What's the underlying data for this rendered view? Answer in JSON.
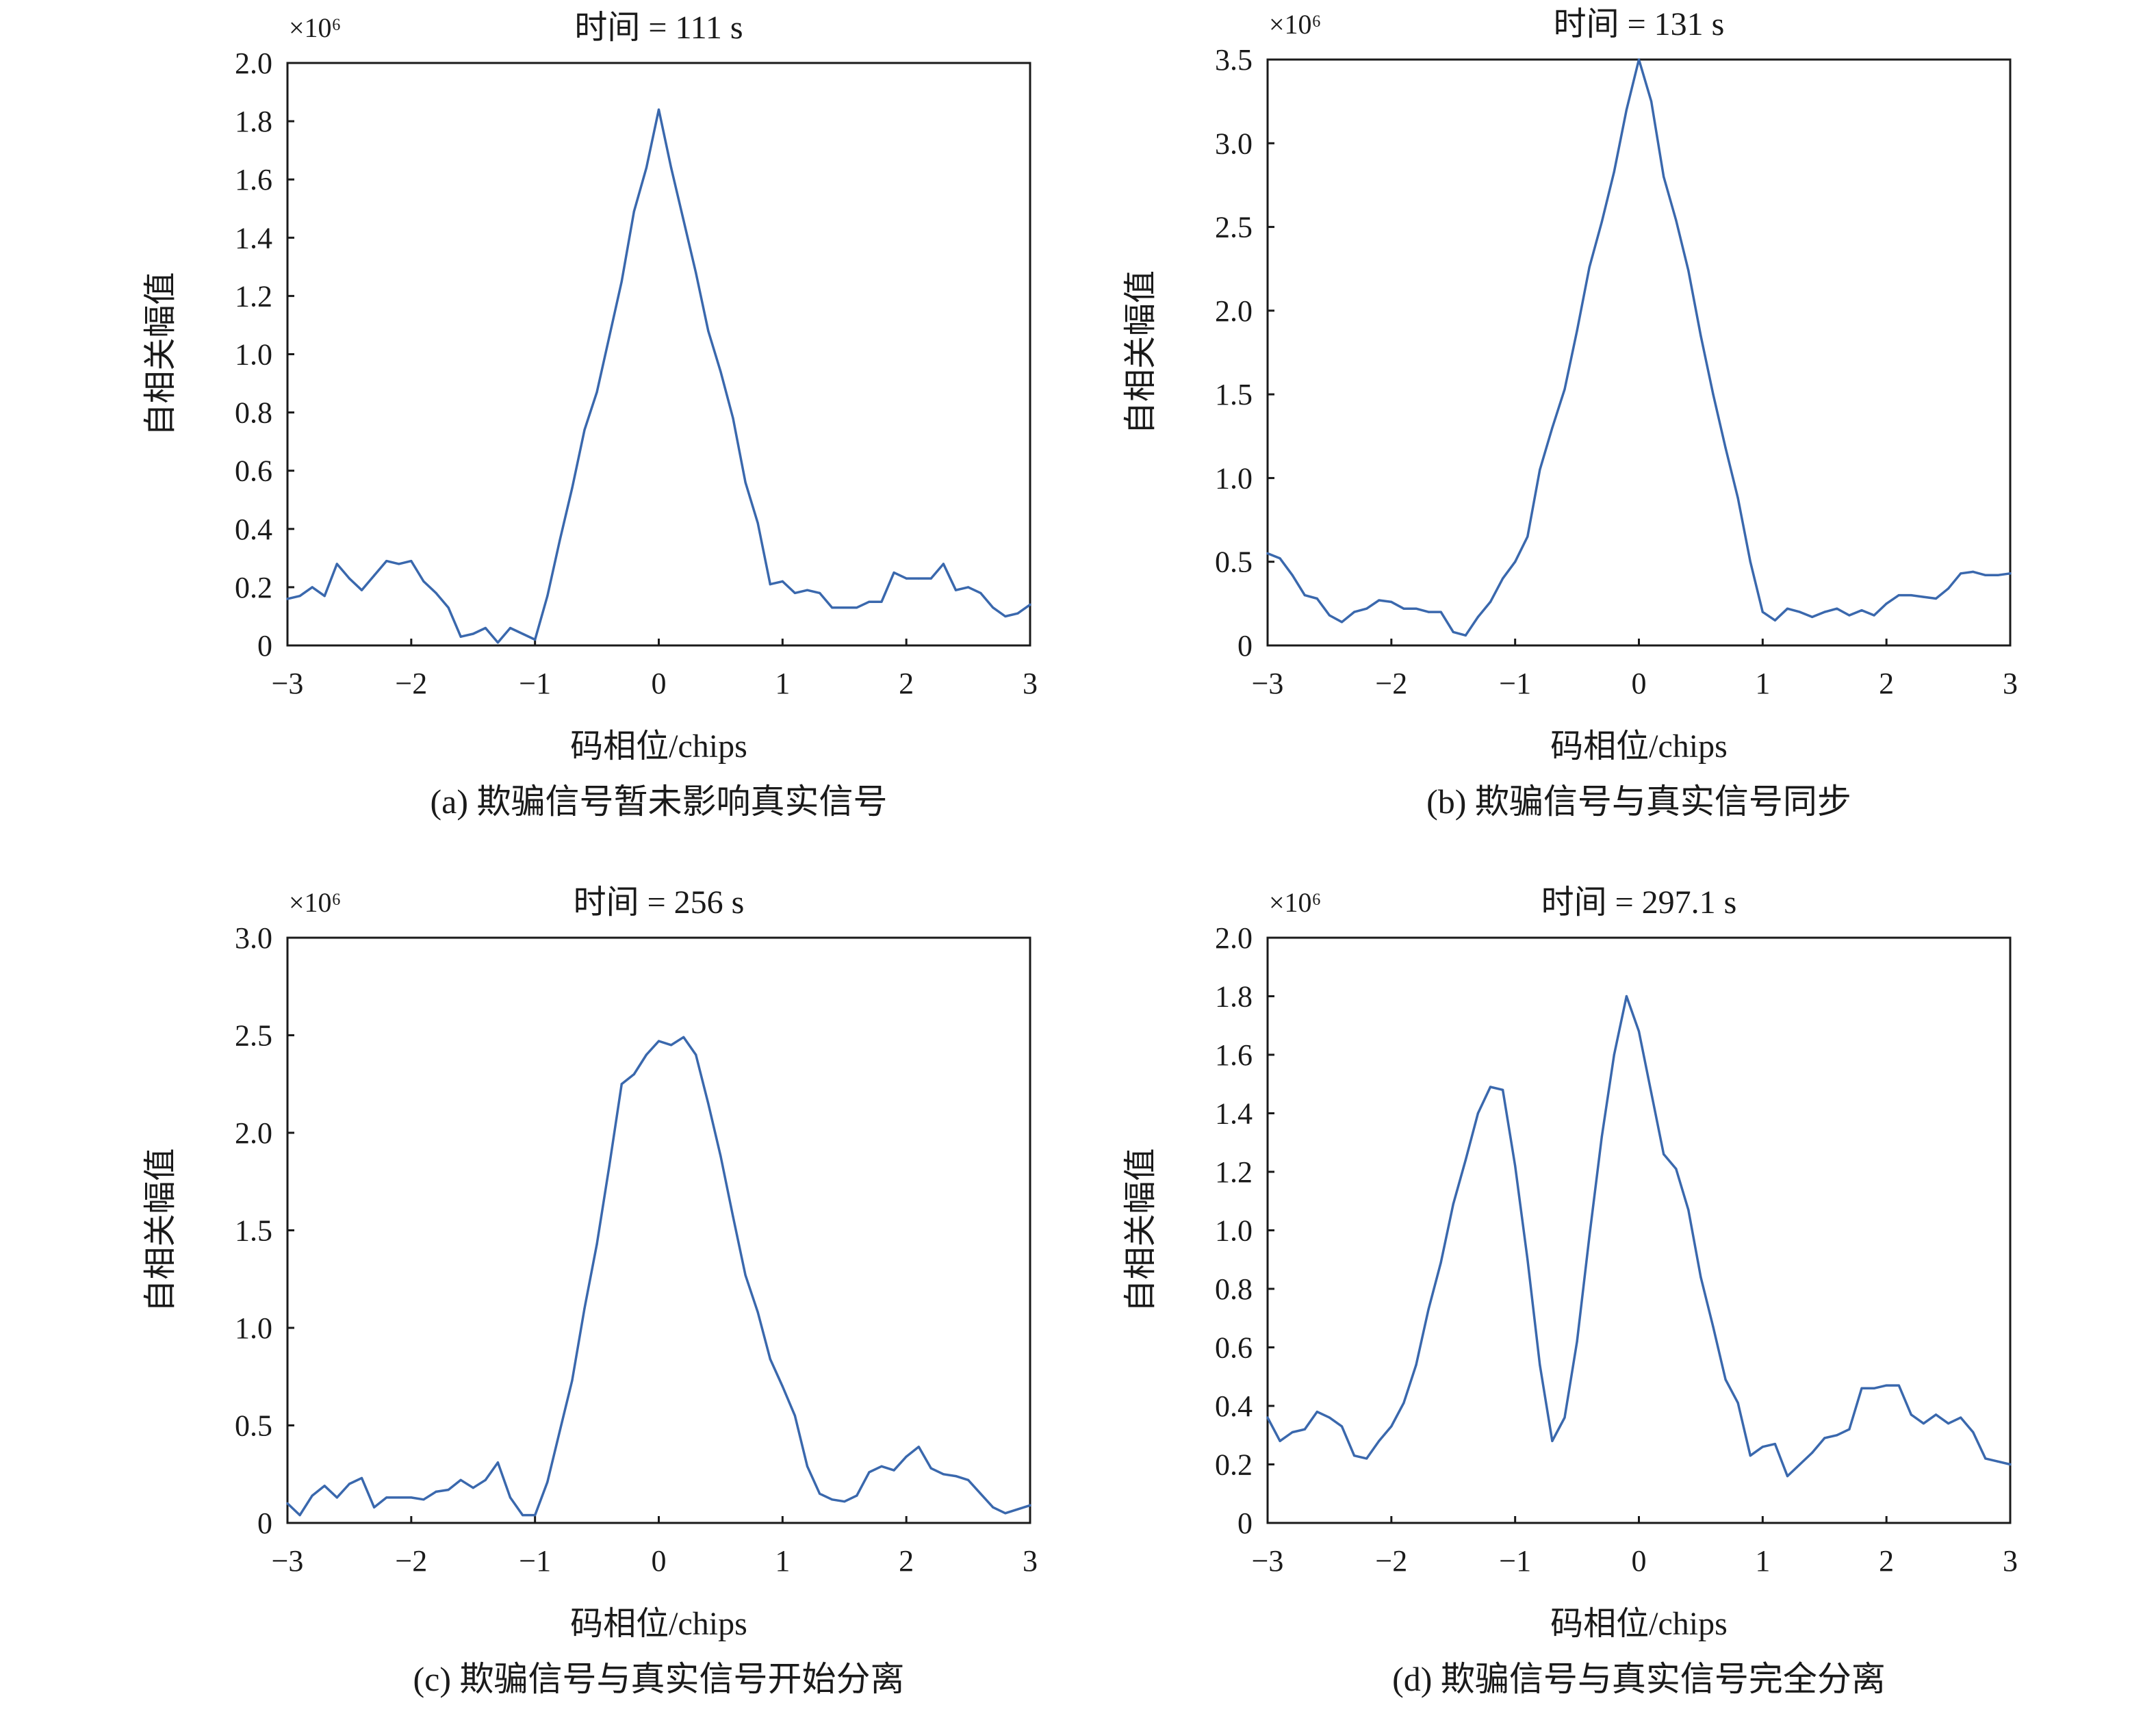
{
  "figure": {
    "title": "",
    "line_color": "#3a68ad",
    "axis_color": "#1a1a1a"
  },
  "chart_data": [
    {
      "type": "line",
      "title": "时间 = 111 s",
      "caption": "(a) 欺骗信号暂未影响真实信号",
      "xlabel": "码相位/chips",
      "ylabel": "自相关幅值",
      "y_scale_label": "×10⁶",
      "xlim": [
        -3,
        3
      ],
      "ylim": [
        0,
        2.0
      ],
      "xticks": [
        -3,
        -2,
        -1,
        0,
        1,
        2,
        3
      ],
      "xtick_labels": [
        "−3",
        "−2",
        "−1",
        "0",
        "1",
        "2",
        "3"
      ],
      "yticks": [
        0,
        0.2,
        0.4,
        0.6,
        0.8,
        1.0,
        1.2,
        1.4,
        1.6,
        1.8,
        2.0
      ],
      "ytick_labels": [
        "0",
        "0.2",
        "0.4",
        "0.6",
        "0.8",
        "1.0",
        "1.2",
        "1.4",
        "1.6",
        "1.8",
        "2.0"
      ],
      "grid": false,
      "series": [
        {
          "x": [
            -3.0,
            -2.9,
            -2.8,
            -2.7,
            -2.6,
            -2.5,
            -2.4,
            -2.3,
            -2.2,
            -2.1,
            -2.0,
            -1.9,
            -1.8,
            -1.7,
            -1.6,
            -1.5,
            -1.4,
            -1.3,
            -1.2,
            -1.1,
            -1.0,
            -0.9,
            -0.8,
            -0.7,
            -0.6,
            -0.5,
            -0.4,
            -0.3,
            -0.2,
            -0.1,
            0.0,
            0.1,
            0.2,
            0.3,
            0.4,
            0.5,
            0.6,
            0.7,
            0.8,
            0.9,
            1.0,
            1.1,
            1.2,
            1.3,
            1.4,
            1.5,
            1.6,
            1.7,
            1.8,
            1.9,
            2.0,
            2.1,
            2.2,
            2.3,
            2.4,
            2.5,
            2.6,
            2.7,
            2.8,
            2.9,
            3.0
          ],
          "y": [
            0.16,
            0.17,
            0.2,
            0.17,
            0.28,
            0.23,
            0.19,
            0.24,
            0.29,
            0.28,
            0.29,
            0.22,
            0.18,
            0.13,
            0.03,
            0.04,
            0.06,
            0.01,
            0.06,
            0.04,
            0.02,
            0.17,
            0.36,
            0.54,
            0.74,
            0.87,
            1.06,
            1.25,
            1.49,
            1.64,
            1.84,
            1.64,
            1.46,
            1.28,
            1.08,
            0.94,
            0.78,
            0.56,
            0.42,
            0.21,
            0.22,
            0.18,
            0.19,
            0.18,
            0.13,
            0.13,
            0.13,
            0.15,
            0.15,
            0.25,
            0.23,
            0.23,
            0.23,
            0.28,
            0.19,
            0.2,
            0.18,
            0.13,
            0.1,
            0.11,
            0.14
          ]
        }
      ]
    },
    {
      "type": "line",
      "title": "时间 = 131 s",
      "caption": "(b) 欺骗信号与真实信号同步",
      "xlabel": "码相位/chips",
      "ylabel": "自相关幅值",
      "y_scale_label": "×10⁶",
      "xlim": [
        -3,
        3
      ],
      "ylim": [
        0,
        3.5
      ],
      "xticks": [
        -3,
        -2,
        -1,
        0,
        1,
        2,
        3
      ],
      "xtick_labels": [
        "−3",
        "−2",
        "−1",
        "0",
        "1",
        "2",
        "3"
      ],
      "yticks": [
        0,
        0.5,
        1.0,
        1.5,
        2.0,
        2.5,
        3.0,
        3.5
      ],
      "ytick_labels": [
        "0",
        "0.5",
        "1.0",
        "1.5",
        "2.0",
        "2.5",
        "3.0",
        "3.5"
      ],
      "grid": false,
      "series": [
        {
          "x": [
            -3.0,
            -2.9,
            -2.8,
            -2.7,
            -2.6,
            -2.5,
            -2.4,
            -2.3,
            -2.2,
            -2.1,
            -2.0,
            -1.9,
            -1.8,
            -1.7,
            -1.6,
            -1.5,
            -1.4,
            -1.3,
            -1.2,
            -1.1,
            -1.0,
            -0.9,
            -0.8,
            -0.7,
            -0.6,
            -0.5,
            -0.4,
            -0.3,
            -0.2,
            -0.1,
            0.0,
            0.1,
            0.2,
            0.3,
            0.4,
            0.5,
            0.6,
            0.7,
            0.8,
            0.9,
            1.0,
            1.1,
            1.2,
            1.3,
            1.4,
            1.5,
            1.6,
            1.7,
            1.8,
            1.9,
            2.0,
            2.1,
            2.2,
            2.3,
            2.4,
            2.5,
            2.6,
            2.7,
            2.8,
            2.9,
            3.0
          ],
          "y": [
            0.55,
            0.52,
            0.42,
            0.3,
            0.28,
            0.18,
            0.14,
            0.2,
            0.22,
            0.27,
            0.26,
            0.22,
            0.22,
            0.2,
            0.2,
            0.08,
            0.06,
            0.17,
            0.26,
            0.4,
            0.5,
            0.65,
            1.05,
            1.3,
            1.53,
            1.88,
            2.26,
            2.53,
            2.83,
            3.2,
            3.5,
            3.25,
            2.8,
            2.54,
            2.24,
            1.85,
            1.5,
            1.18,
            0.88,
            0.5,
            0.2,
            0.15,
            0.22,
            0.2,
            0.17,
            0.2,
            0.22,
            0.18,
            0.21,
            0.18,
            0.25,
            0.3,
            0.3,
            0.29,
            0.28,
            0.34,
            0.43,
            0.44,
            0.42,
            0.42,
            0.43
          ]
        }
      ]
    },
    {
      "type": "line",
      "title": "时间 = 256 s",
      "caption": "(c) 欺骗信号与真实信号开始分离",
      "xlabel": "码相位/chips",
      "ylabel": "自相关幅值",
      "y_scale_label": "×10⁶",
      "xlim": [
        -3,
        3
      ],
      "ylim": [
        0,
        3.0
      ],
      "xticks": [
        -3,
        -2,
        -1,
        0,
        1,
        2,
        3
      ],
      "xtick_labels": [
        "−3",
        "−2",
        "−1",
        "0",
        "1",
        "2",
        "3"
      ],
      "yticks": [
        0,
        0.5,
        1.0,
        1.5,
        2.0,
        2.5,
        3.0
      ],
      "ytick_labels": [
        "0",
        "0.5",
        "1.0",
        "1.5",
        "2.0",
        "2.5",
        "3.0"
      ],
      "grid": false,
      "series": [
        {
          "x": [
            -3.0,
            -2.9,
            -2.8,
            -2.7,
            -2.6,
            -2.5,
            -2.4,
            -2.3,
            -2.2,
            -2.1,
            -2.0,
            -1.9,
            -1.8,
            -1.7,
            -1.6,
            -1.5,
            -1.4,
            -1.3,
            -1.2,
            -1.1,
            -1.0,
            -0.9,
            -0.8,
            -0.7,
            -0.6,
            -0.5,
            -0.4,
            -0.3,
            -0.2,
            -0.1,
            0.0,
            0.1,
            0.2,
            0.3,
            0.4,
            0.5,
            0.6,
            0.7,
            0.8,
            0.9,
            1.0,
            1.1,
            1.2,
            1.3,
            1.4,
            1.5,
            1.6,
            1.7,
            1.8,
            1.9,
            2.0,
            2.1,
            2.2,
            2.3,
            2.4,
            2.5,
            2.6,
            2.7,
            2.8,
            2.9,
            3.0
          ],
          "y": [
            0.1,
            0.04,
            0.14,
            0.19,
            0.13,
            0.2,
            0.23,
            0.08,
            0.13,
            0.13,
            0.13,
            0.12,
            0.16,
            0.17,
            0.22,
            0.18,
            0.22,
            0.31,
            0.13,
            0.04,
            0.04,
            0.21,
            0.47,
            0.73,
            1.1,
            1.43,
            1.83,
            2.25,
            2.3,
            2.4,
            2.47,
            2.45,
            2.49,
            2.4,
            2.15,
            1.88,
            1.57,
            1.27,
            1.08,
            0.84,
            0.7,
            0.55,
            0.29,
            0.15,
            0.12,
            0.11,
            0.14,
            0.26,
            0.29,
            0.27,
            0.34,
            0.39,
            0.28,
            0.25,
            0.24,
            0.22,
            0.15,
            0.08,
            0.05,
            0.07,
            0.09
          ]
        }
      ]
    },
    {
      "type": "line",
      "title": "时间 = 297.1 s",
      "caption": "(d) 欺骗信号与真实信号完全分离",
      "xlabel": "码相位/chips",
      "ylabel": "自相关幅值",
      "y_scale_label": "×10⁶",
      "xlim": [
        -3,
        3
      ],
      "ylim": [
        0,
        2.0
      ],
      "xticks": [
        -3,
        -2,
        -1,
        0,
        1,
        2,
        3
      ],
      "xtick_labels": [
        "−3",
        "−2",
        "−1",
        "0",
        "1",
        "2",
        "3"
      ],
      "yticks": [
        0,
        0.2,
        0.4,
        0.6,
        0.8,
        1.0,
        1.2,
        1.4,
        1.6,
        1.8,
        2.0
      ],
      "ytick_labels": [
        "0",
        "0.2",
        "0.4",
        "0.6",
        "0.8",
        "1.0",
        "1.2",
        "1.4",
        "1.6",
        "1.8",
        "2.0"
      ],
      "grid": false,
      "series": [
        {
          "x": [
            -3.0,
            -2.9,
            -2.8,
            -2.7,
            -2.6,
            -2.5,
            -2.4,
            -2.3,
            -2.2,
            -2.1,
            -2.0,
            -1.9,
            -1.8,
            -1.7,
            -1.6,
            -1.5,
            -1.4,
            -1.3,
            -1.2,
            -1.1,
            -1.0,
            -0.9,
            -0.8,
            -0.7,
            -0.6,
            -0.5,
            -0.4,
            -0.3,
            -0.2,
            -0.1,
            0.0,
            0.1,
            0.2,
            0.3,
            0.4,
            0.5,
            0.6,
            0.7,
            0.8,
            0.9,
            1.0,
            1.1,
            1.2,
            1.3,
            1.4,
            1.5,
            1.6,
            1.7,
            1.8,
            1.9,
            2.0,
            2.1,
            2.2,
            2.3,
            2.4,
            2.5,
            2.6,
            2.7,
            2.8,
            2.9,
            3.0
          ],
          "y": [
            0.36,
            0.28,
            0.31,
            0.32,
            0.38,
            0.36,
            0.33,
            0.23,
            0.22,
            0.28,
            0.33,
            0.41,
            0.54,
            0.73,
            0.89,
            1.09,
            1.24,
            1.4,
            1.49,
            1.48,
            1.22,
            0.9,
            0.54,
            0.28,
            0.36,
            0.62,
            0.98,
            1.32,
            1.6,
            1.8,
            1.68,
            1.47,
            1.26,
            1.21,
            1.07,
            0.84,
            0.67,
            0.49,
            0.41,
            0.23,
            0.26,
            0.27,
            0.16,
            0.2,
            0.24,
            0.29,
            0.3,
            0.32,
            0.46,
            0.46,
            0.47,
            0.47,
            0.37,
            0.34,
            0.37,
            0.34,
            0.36,
            0.31,
            0.22,
            0.21,
            0.2
          ]
        }
      ]
    }
  ]
}
